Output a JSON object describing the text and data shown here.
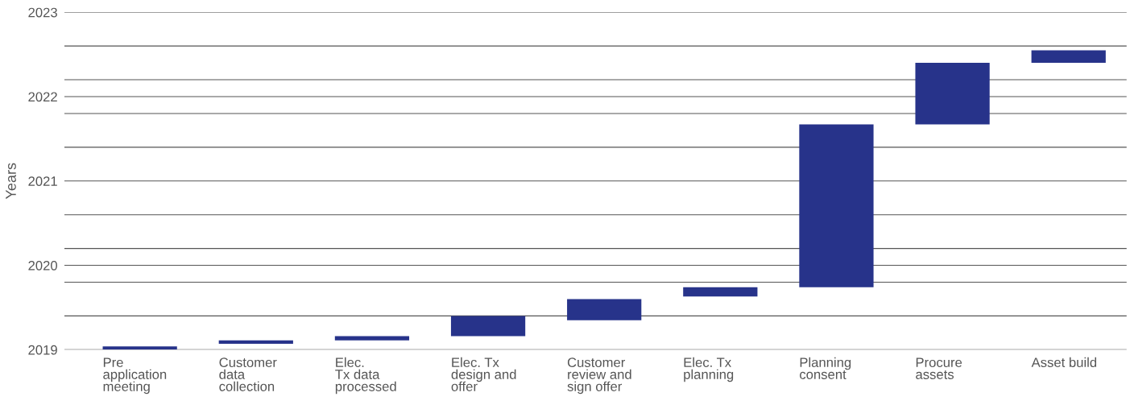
{
  "chart_data": {
    "type": "bar",
    "ylabel": "Years",
    "categories": [
      "Pre\napplication\nmeeting",
      "Customer\ndata\ncollection",
      "Elec.\nTx data\nprocessed",
      "Elec. Tx\ndesign and\noffer",
      "Customer\nreview and\nsign offer",
      "Elec. Tx\nplanning",
      "Planning\nconsent",
      "Procure\nassets",
      "Asset build"
    ],
    "base": [
      2019.0,
      2019.07,
      2019.11,
      2019.16,
      2019.35,
      2019.63,
      2019.74,
      2021.67,
      2022.4
    ],
    "values": [
      0.04,
      0.04,
      0.05,
      0.24,
      0.25,
      0.11,
      1.93,
      0.73,
      0.15
    ],
    "color": "#27338a",
    "ylim": [
      2019,
      2023
    ],
    "yticks": [
      2019,
      {
        "value": 2019.4,
        "label": null
      },
      {
        "value": 2019.8,
        "label": null
      },
      2020,
      {
        "value": 2020.2,
        "label": null
      },
      {
        "value": 2020.6,
        "label": null
      },
      2021,
      {
        "value": 2021.4,
        "label": null
      },
      {
        "value": 2021.8,
        "label": null
      },
      2022,
      {
        "value": 2022.2,
        "label": null
      },
      {
        "value": 2022.6,
        "label": null
      },
      2023
    ],
    "grid": "y"
  }
}
